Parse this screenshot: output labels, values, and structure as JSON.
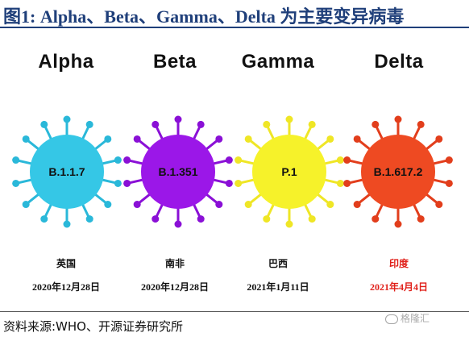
{
  "title": "图1:  Alpha、Beta、Gamma、Delta 为主要变异病毒",
  "variants": [
    {
      "name": "Alpha",
      "lineage": "B.1.1.7",
      "country": "英国",
      "date": "2020年12月28日",
      "color": "#35c7e6",
      "spike_color": "#2ab8d9",
      "date_highlight": false
    },
    {
      "name": "Beta",
      "lineage": "B.1.351",
      "country": "南非",
      "date": "2020年12月28日",
      "color": "#9b17e8",
      "spike_color": "#8a10d6",
      "date_highlight": false
    },
    {
      "name": "Gamma",
      "lineage": "P.1",
      "country": "巴西",
      "date": "2021年1月11日",
      "color": "#f6f22a",
      "spike_color": "#efe626",
      "date_highlight": false
    },
    {
      "name": "Delta",
      "lineage": "B.1.617.2",
      "country": "印度",
      "date": "2021年4月4日",
      "color": "#ee4a22",
      "spike_color": "#e23e1c",
      "date_highlight": true
    }
  ],
  "source": "资料来源:WHO、开源证券研究所",
  "watermark": "格隆汇",
  "colors": {
    "title": "#1f3f7a",
    "highlight": "#e0201a"
  }
}
